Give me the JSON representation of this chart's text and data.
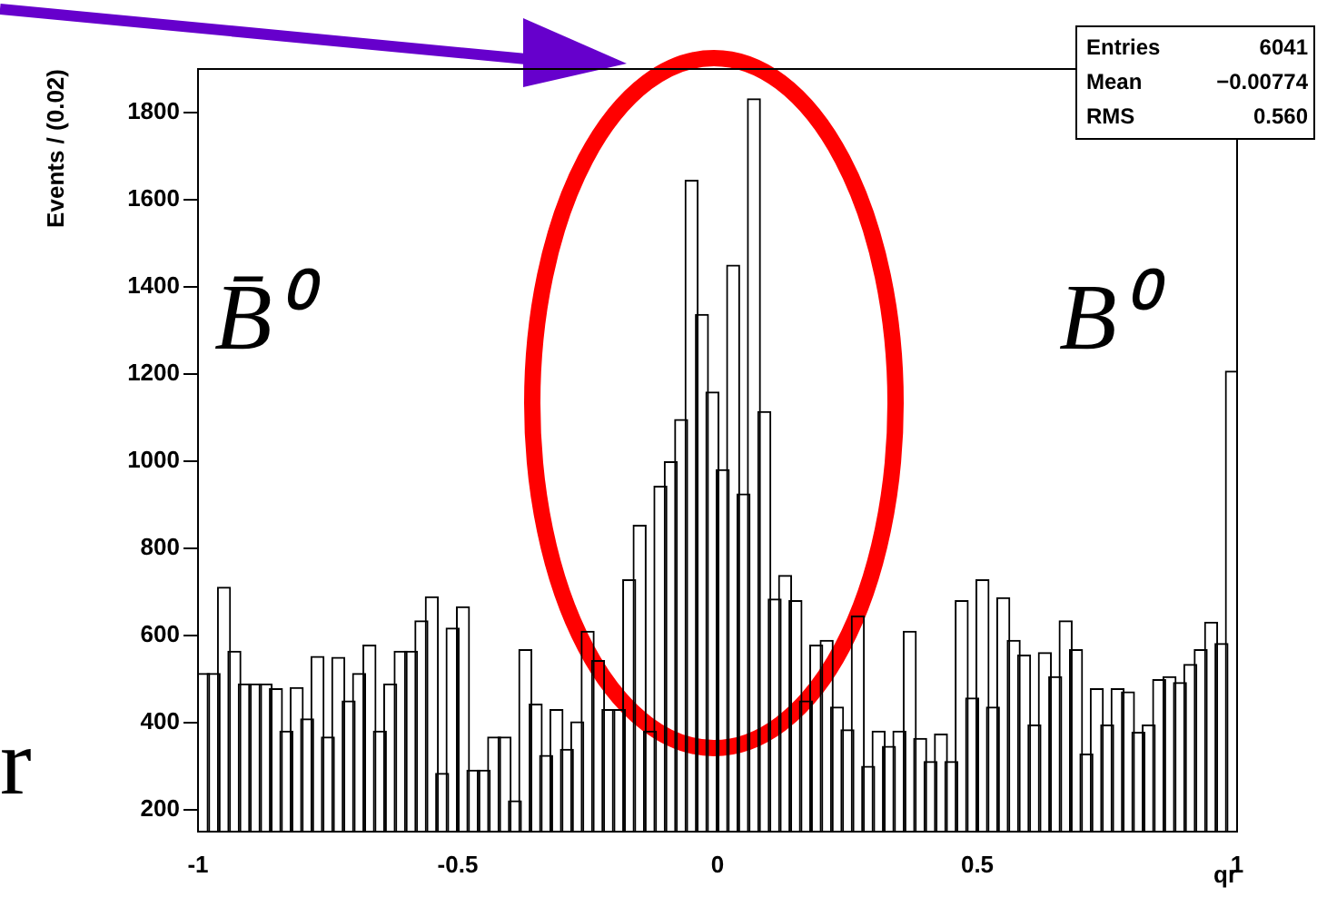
{
  "chart_data": {
    "type": "histogram",
    "xlabel": "qr",
    "ylabel": "Events / (0.02)",
    "bins": [
      -1,
      -0.98,
      -0.96,
      -0.94,
      -0.92,
      -0.9,
      -0.88,
      -0.86,
      -0.84,
      -0.82,
      -0.8,
      -0.78,
      -0.76,
      -0.74,
      -0.72,
      -0.7,
      -0.68,
      -0.66,
      -0.64,
      -0.62,
      -0.6,
      -0.58,
      -0.56,
      -0.54,
      -0.52,
      -0.5,
      -0.48,
      -0.46,
      -0.44,
      -0.42,
      -0.4,
      -0.38,
      -0.36,
      -0.34,
      -0.32,
      -0.3,
      -0.28,
      -0.26,
      -0.24,
      -0.22,
      -0.2,
      -0.18,
      -0.16,
      -0.14,
      -0.12,
      -0.1,
      -0.08,
      -0.06,
      -0.04,
      -0.02,
      0,
      0.02,
      0.04,
      0.06,
      0.08,
      0.1,
      0.12,
      0.14,
      0.16,
      0.18,
      0.2,
      0.22,
      0.24,
      0.26,
      0.28,
      0.3,
      0.32,
      0.34,
      0.36,
      0.38,
      0.4,
      0.42,
      0.44,
      0.46,
      0.48,
      0.5,
      0.52,
      0.54,
      0.56,
      0.58,
      0.6,
      0.62,
      0.64,
      0.66,
      0.68,
      0.7,
      0.72,
      0.74,
      0.76,
      0.78,
      0.8,
      0.82,
      0.84,
      0.86,
      0.88,
      0.9,
      0.92,
      0.94,
      0.96,
      0.98,
      1
    ],
    "values": [
      514,
      514,
      712,
      565,
      490,
      490,
      490,
      479,
      382,
      482,
      410,
      553,
      368,
      551,
      451,
      514,
      579,
      382,
      490,
      565,
      565,
      635,
      690,
      285,
      618,
      667,
      292,
      292,
      368,
      368,
      222,
      569,
      444,
      326,
      431,
      340,
      403,
      611,
      544,
      431,
      431,
      729,
      854,
      382,
      944,
      1000,
      1097,
      1646,
      1338,
      1160,
      982,
      1451,
      926,
      1833,
      1115,
      685,
      739,
      681,
      451,
      579,
      590,
      437,
      385,
      646,
      301,
      382,
      347,
      382,
      611,
      365,
      312,
      375,
      312,
      681,
      458,
      729,
      437,
      688,
      590,
      556,
      396,
      562,
      507,
      635,
      569,
      329,
      479,
      396,
      479,
      472,
      379,
      396,
      500,
      507,
      493,
      535,
      569,
      632,
      583,
      1208
    ],
    "color": "#000000",
    "xlim": [
      -1,
      1
    ],
    "xticks": [
      -1,
      -0.5,
      0,
      0.5,
      1
    ],
    "ylim": [
      150,
      1900
    ],
    "yticks": [
      200,
      400,
      600,
      800,
      1000,
      1200,
      1400,
      1600,
      1800
    ],
    "grid": false,
    "legend": false,
    "annotations": [
      "B̄⁰",
      "B⁰",
      "Entries 6041",
      "Mean −0.00774",
      "RMS 0.560",
      "r"
    ]
  }
}
